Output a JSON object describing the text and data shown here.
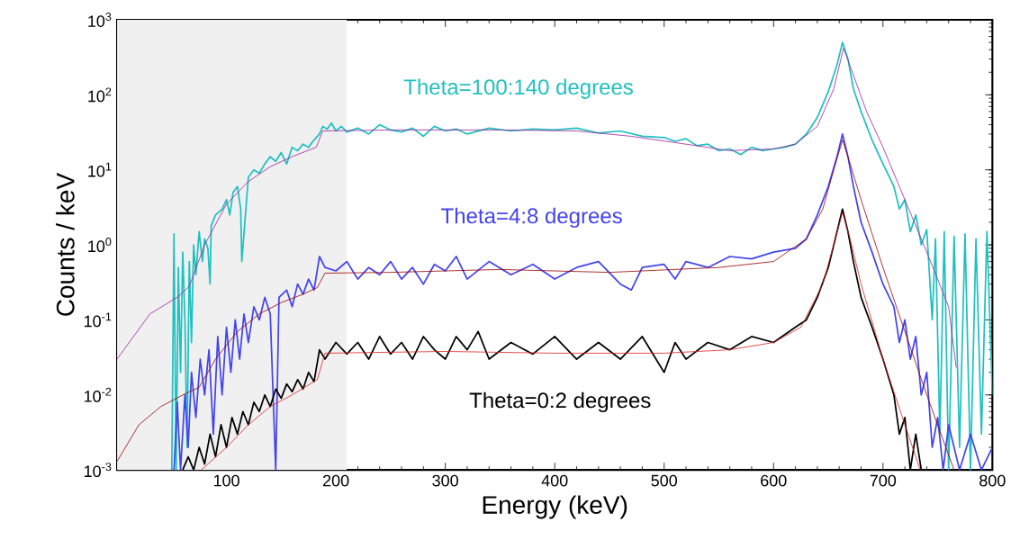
{
  "chart_data": {
    "type": "line",
    "xlabel": "Energy (keV)",
    "ylabel": "Counts / keV",
    "log": "y",
    "xlim": [
      0,
      800
    ],
    "ylim": [
      0.001,
      1000
    ],
    "xticks": [
      100,
      200,
      300,
      400,
      500,
      600,
      700,
      800
    ],
    "yticks": [
      {
        "value": 0.001,
        "label": "10$^{-3}$"
      },
      {
        "value": 0.01,
        "label": "10$^{-2}$"
      },
      {
        "value": 0.1,
        "label": "10$^{-1}$"
      },
      {
        "value": 1,
        "label": "10$^{0}$"
      },
      {
        "value": 10,
        "label": "10$^{1}$"
      },
      {
        "value": 100,
        "label": "10$^{2}$"
      },
      {
        "value": 1000,
        "label": "10$^{3}$"
      }
    ],
    "bands": [
      {
        "axis": "x",
        "from": 0,
        "to": 210,
        "color": "#f0f0f0"
      }
    ],
    "series": [
      {
        "name": "Theta=100:140 degrees",
        "color": "#20c0c0",
        "x": [
          50,
          52,
          54,
          56,
          58,
          60,
          62,
          64,
          66,
          68,
          70,
          72,
          75,
          78,
          80,
          83,
          85,
          86,
          90,
          96,
          100,
          103,
          106,
          110,
          113,
          114,
          120,
          125,
          130,
          135,
          140,
          145,
          150,
          155,
          160,
          165,
          170,
          175,
          180,
          185,
          188,
          192,
          196,
          200,
          205,
          210,
          220,
          230,
          240,
          250,
          260,
          270,
          280,
          290,
          300,
          310,
          320,
          340,
          360,
          380,
          400,
          420,
          440,
          460,
          480,
          500,
          510,
          520,
          530,
          540,
          550,
          560,
          570,
          580,
          590,
          600,
          610,
          620,
          630,
          640,
          650,
          658,
          663,
          668,
          673,
          680,
          690,
          700,
          710,
          715,
          720,
          725,
          730,
          735,
          740,
          745,
          748,
          752,
          756,
          760,
          765,
          770,
          775,
          780,
          785,
          790,
          795,
          800
        ],
        "values": [
          0.001,
          1.4,
          0.001,
          0.5,
          0.02,
          0.8,
          0.1,
          0.002,
          0.6,
          0.05,
          1.0,
          0.4,
          1.5,
          0.6,
          1.2,
          0.9,
          0.3,
          1.8,
          2.5,
          3,
          4,
          2.5,
          5,
          6,
          3,
          0.6,
          8,
          10,
          9,
          12,
          15,
          13,
          17,
          12,
          20,
          18,
          22,
          20,
          25,
          30,
          38,
          35,
          42,
          33,
          38,
          32,
          36,
          30,
          40,
          34,
          32,
          36,
          28,
          38,
          33,
          35,
          30,
          36,
          33,
          35,
          34,
          36,
          31,
          33,
          28,
          27,
          24,
          26,
          21,
          22,
          18,
          19,
          16,
          20,
          18,
          19,
          20,
          22,
          30,
          50,
          110,
          250,
          500,
          300,
          120,
          60,
          25,
          12,
          6,
          3,
          4,
          1.5,
          2.5,
          1,
          1.6,
          0.1,
          1.2,
          0.003,
          1.5,
          0.001,
          1.3,
          0.002,
          1.4,
          0.001,
          1.2,
          0.003,
          1.5,
          0.01
        ]
      },
      {
        "name": "Theta=4:8 degrees",
        "color": "#4444ee",
        "x": [
          52,
          55,
          58,
          62,
          65,
          68,
          72,
          76,
          80,
          84,
          88,
          92,
          96,
          100,
          104,
          108,
          112,
          116,
          120,
          125,
          130,
          135,
          140,
          145,
          148,
          155,
          160,
          165,
          170,
          175,
          180,
          185,
          190,
          200,
          210,
          220,
          230,
          240,
          250,
          260,
          270,
          280,
          290,
          300,
          310,
          320,
          340,
          360,
          380,
          400,
          420,
          440,
          460,
          470,
          480,
          500,
          510,
          520,
          540,
          560,
          580,
          600,
          620,
          630,
          640,
          650,
          658,
          663,
          668,
          673,
          680,
          690,
          700,
          710,
          715,
          720,
          725,
          730,
          735,
          740,
          745,
          750,
          755,
          760,
          770,
          780,
          790,
          800
        ],
        "values": [
          0.001,
          0.008,
          0.001,
          0.01,
          0.002,
          0.02,
          0.005,
          0.03,
          0.01,
          0.04,
          0.003,
          0.06,
          0.01,
          0.08,
          0.02,
          0.1,
          0.03,
          0.12,
          0.05,
          0.15,
          0.1,
          0.2,
          0.12,
          0.001,
          0.2,
          0.25,
          0.15,
          0.3,
          0.22,
          0.35,
          0.25,
          0.7,
          0.5,
          0.45,
          0.6,
          0.35,
          0.5,
          0.4,
          0.6,
          0.35,
          0.5,
          0.3,
          0.55,
          0.45,
          0.7,
          0.35,
          0.6,
          0.4,
          0.55,
          0.35,
          0.5,
          0.6,
          0.3,
          0.25,
          0.5,
          0.55,
          0.35,
          0.6,
          0.5,
          0.7,
          0.65,
          0.8,
          0.9,
          1.2,
          2.5,
          6,
          15,
          30,
          15,
          6,
          2,
          0.8,
          0.3,
          0.15,
          0.05,
          0.1,
          0.03,
          0.06,
          0.01,
          0.02,
          0.002,
          0.005,
          0.001,
          0.004,
          0.001,
          0.003,
          0.001,
          0.002
        ]
      },
      {
        "name": "Theta=0:2 degrees",
        "color": "#000000",
        "x": [
          60,
          65,
          70,
          75,
          80,
          85,
          90,
          95,
          100,
          105,
          110,
          115,
          120,
          125,
          130,
          135,
          140,
          145,
          150,
          155,
          160,
          165,
          170,
          175,
          180,
          185,
          190,
          200,
          210,
          220,
          230,
          240,
          250,
          260,
          270,
          280,
          290,
          300,
          310,
          320,
          330,
          340,
          360,
          380,
          400,
          420,
          440,
          460,
          480,
          500,
          510,
          520,
          540,
          560,
          580,
          600,
          620,
          630,
          640,
          650,
          658,
          663,
          668,
          673,
          680,
          690,
          700,
          710,
          715,
          720,
          725,
          730,
          735
        ],
        "values": [
          0.001,
          0.0015,
          0.001,
          0.002,
          0.0012,
          0.003,
          0.0015,
          0.004,
          0.002,
          0.005,
          0.003,
          0.006,
          0.004,
          0.008,
          0.006,
          0.01,
          0.007,
          0.012,
          0.009,
          0.014,
          0.011,
          0.016,
          0.012,
          0.02,
          0.015,
          0.04,
          0.03,
          0.05,
          0.035,
          0.05,
          0.03,
          0.06,
          0.035,
          0.05,
          0.03,
          0.06,
          0.04,
          0.03,
          0.06,
          0.04,
          0.07,
          0.03,
          0.05,
          0.035,
          0.06,
          0.03,
          0.05,
          0.03,
          0.06,
          0.02,
          0.05,
          0.03,
          0.05,
          0.04,
          0.06,
          0.05,
          0.08,
          0.1,
          0.2,
          0.5,
          1.5,
          3,
          1.5,
          0.6,
          0.2,
          0.08,
          0.03,
          0.01,
          0.003,
          0.005,
          0.001,
          0.003,
          0.001
        ]
      },
      {
        "color": "#a020a0",
        "x": [
          0,
          30,
          55,
          66,
          80,
          100,
          120,
          140,
          160,
          182,
          188,
          250,
          350,
          420,
          470,
          520,
          560,
          600,
          620,
          640,
          655,
          664,
          672,
          685,
          700,
          720,
          740,
          760,
          767
        ],
        "values": [
          0.03,
          0.12,
          0.2,
          0.28,
          1,
          3.5,
          7,
          11,
          15,
          20,
          33,
          34,
          34,
          33,
          28,
          22,
          18,
          19,
          22,
          38,
          120,
          420,
          200,
          60,
          20,
          4,
          0.8,
          0.15,
          0.023
        ]
      },
      {
        "color": "#990000",
        "x": [
          0,
          20,
          40,
          63,
          75,
          90,
          110,
          130,
          150,
          170,
          183,
          190,
          250,
          350,
          450,
          550,
          600,
          630,
          645,
          655,
          663,
          670,
          680,
          700,
          720,
          740,
          755,
          765
        ],
        "values": [
          0.0013,
          0.004,
          0.007,
          0.0105,
          0.0126,
          0.03,
          0.07,
          0.12,
          0.17,
          0.22,
          0.27,
          0.42,
          0.43,
          0.47,
          0.43,
          0.5,
          0.6,
          1.2,
          3,
          10,
          25,
          12,
          4,
          0.5,
          0.07,
          0.01,
          0.0025,
          0.001
        ]
      },
      {
        "color": "#dd2222",
        "x": [
          77,
          100,
          120,
          140,
          160,
          183,
          190,
          300,
          400,
          500,
          560,
          600,
          625,
          645,
          655,
          663,
          670,
          680,
          700,
          720,
          730,
          734
        ],
        "values": [
          0.001,
          0.002,
          0.004,
          0.007,
          0.01,
          0.016,
          0.036,
          0.038,
          0.036,
          0.036,
          0.04,
          0.05,
          0.08,
          0.3,
          1,
          2.7,
          1.2,
          0.3,
          0.03,
          0.004,
          0.0015,
          0.001
        ]
      }
    ]
  }
}
